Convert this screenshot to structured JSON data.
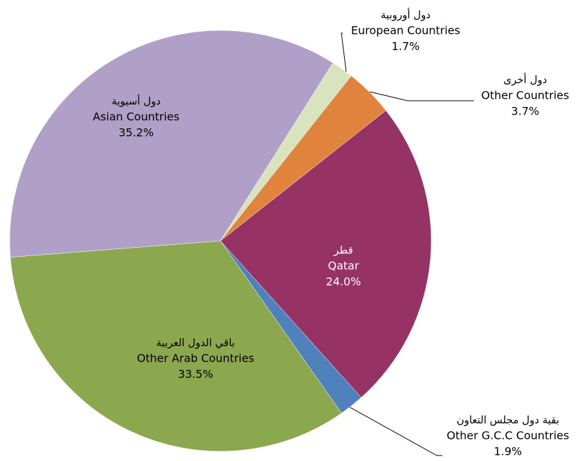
{
  "chart_data": {
    "type": "pie",
    "categories": [
      "Qatar",
      "Other G.C.C Countries",
      "Other Arab Countries",
      "Asian Countries",
      "European Countries",
      "Other Countries"
    ],
    "labels_ar": [
      "قطر",
      "بقية دول مجلس التعاون",
      "باقي الدول العربية",
      "دول أسيوية",
      "دول أوروبية",
      "دول أخرى"
    ],
    "values": [
      24.0,
      1.9,
      33.5,
      35.2,
      1.7,
      3.7
    ],
    "value_labels": [
      "24.0%",
      "1.9%",
      "33.5%",
      "35.2%",
      "1.7%",
      "3.7%"
    ],
    "colors": [
      "#963264",
      "#4f81bd",
      "#8ba84f",
      "#b0a0c8",
      "#d7e4bd",
      "#e0833c"
    ]
  }
}
